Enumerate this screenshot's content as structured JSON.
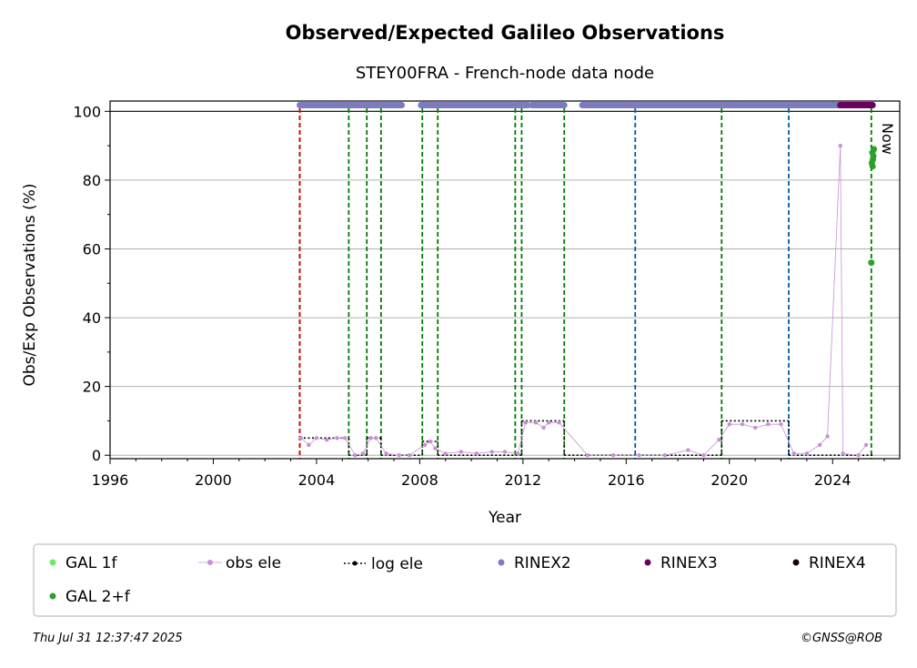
{
  "chart_data": {
    "type": "scatter",
    "title": "Observed/Expected Galileo Observations",
    "subtitle": "STEY00FRA - French-node data node",
    "xlabel": "Year",
    "ylabel": "Obs/Exp Observations (%)",
    "xlim": [
      1996,
      2026.6
    ],
    "ylim": [
      -1,
      103
    ],
    "x_ticks": [
      1996,
      2000,
      2004,
      2008,
      2012,
      2016,
      2020,
      2024
    ],
    "y_ticks": [
      0,
      20,
      40,
      60,
      80,
      100
    ],
    "grid": "horizontal",
    "now_label": "Now",
    "now_x": 2025.58,
    "event_lines": {
      "red": [
        2003.35
      ],
      "green": [
        2003.35,
        2005.25,
        2005.95,
        2006.5,
        2008.1,
        2008.7,
        2011.7,
        2011.95,
        2013.6,
        2019.7,
        2025.5
      ],
      "blue": [
        2016.35,
        2022.3
      ]
    },
    "legend": [
      {
        "label": "GAL 1f",
        "color": "#66ee66",
        "marker": "dot"
      },
      {
        "label": "obs ele",
        "color": "#c890d6",
        "marker": "line-dot"
      },
      {
        "label": "log ele",
        "color": "#000000",
        "marker": "dotted-line"
      },
      {
        "label": "RINEX2",
        "color": "#7b7bbd",
        "marker": "dot"
      },
      {
        "label": "RINEX3",
        "color": "#6a0060",
        "marker": "dot"
      },
      {
        "label": "RINEX4",
        "color": "#1a0010",
        "marker": "dot"
      },
      {
        "label": "GAL 2+f",
        "color": "#2ca02c",
        "marker": "dot"
      }
    ],
    "series": [
      {
        "name": "log ele",
        "steps": [
          [
            2003.35,
            2005.25,
            5
          ],
          [
            2005.25,
            2005.95,
            0
          ],
          [
            2005.95,
            2006.5,
            5
          ],
          [
            2006.5,
            2008.1,
            0
          ],
          [
            2008.1,
            2008.7,
            4
          ],
          [
            2008.7,
            2011.95,
            0
          ],
          [
            2011.95,
            2013.6,
            10
          ],
          [
            2013.6,
            2019.7,
            0
          ],
          [
            2019.7,
            2022.3,
            10
          ],
          [
            2022.3,
            2025.6,
            0
          ]
        ]
      },
      {
        "name": "obs ele",
        "points": [
          [
            2003.4,
            5
          ],
          [
            2003.7,
            3
          ],
          [
            2004.0,
            5
          ],
          [
            2004.4,
            4.5
          ],
          [
            2004.8,
            5
          ],
          [
            2005.1,
            5
          ],
          [
            2005.5,
            0
          ],
          [
            2005.8,
            0.5
          ],
          [
            2006.1,
            5
          ],
          [
            2006.3,
            5
          ],
          [
            2006.7,
            0.5
          ],
          [
            2007.2,
            0
          ],
          [
            2007.6,
            0
          ],
          [
            2008.2,
            3
          ],
          [
            2008.4,
            4
          ],
          [
            2008.6,
            2
          ],
          [
            2009.0,
            0.5
          ],
          [
            2009.6,
            1
          ],
          [
            2010.2,
            0.5
          ],
          [
            2010.8,
            1
          ],
          [
            2011.3,
            1
          ],
          [
            2011.8,
            0.5
          ],
          [
            2012.1,
            9.5
          ],
          [
            2012.5,
            9.5
          ],
          [
            2012.8,
            8
          ],
          [
            2013.0,
            9.5
          ],
          [
            2013.4,
            9.5
          ],
          [
            2014.5,
            0
          ],
          [
            2015.5,
            0
          ],
          [
            2016.5,
            0
          ],
          [
            2017.5,
            0
          ],
          [
            2018.4,
            1.5
          ],
          [
            2019.0,
            0
          ],
          [
            2019.6,
            4.5
          ],
          [
            2020.0,
            9
          ],
          [
            2020.5,
            9
          ],
          [
            2021.0,
            8
          ],
          [
            2021.5,
            9
          ],
          [
            2022.0,
            9
          ],
          [
            2022.5,
            0.5
          ],
          [
            2023.0,
            0.5
          ],
          [
            2023.5,
            3
          ],
          [
            2023.8,
            5.5
          ],
          [
            2024.3,
            90
          ],
          [
            2024.4,
            0.5
          ],
          [
            2025.0,
            0
          ],
          [
            2025.3,
            3
          ]
        ]
      },
      {
        "name": "RINEX2",
        "y": 101.8,
        "ranges": [
          [
            2003.35,
            2007.3
          ],
          [
            2008.05,
            2008.75
          ],
          [
            2008.8,
            2011.6
          ],
          [
            2011.7,
            2012.2
          ],
          [
            2012.35,
            2013.6
          ],
          [
            2014.3,
            2024.3
          ]
        ]
      },
      {
        "name": "RINEX3",
        "y": 101.8,
        "ranges": [
          [
            2024.3,
            2025.55
          ]
        ]
      },
      {
        "name": "GAL 2+f",
        "points": [
          [
            2025.5,
            56
          ],
          [
            2025.52,
            85
          ],
          [
            2025.54,
            88
          ],
          [
            2025.56,
            86
          ],
          [
            2025.58,
            87
          ],
          [
            2025.6,
            89
          ],
          [
            2025.55,
            84
          ]
        ]
      }
    ]
  },
  "footer": {
    "timestamp": "Thu Jul 31 12:37:47 2025",
    "copyright": "©GNSS@ROB"
  }
}
